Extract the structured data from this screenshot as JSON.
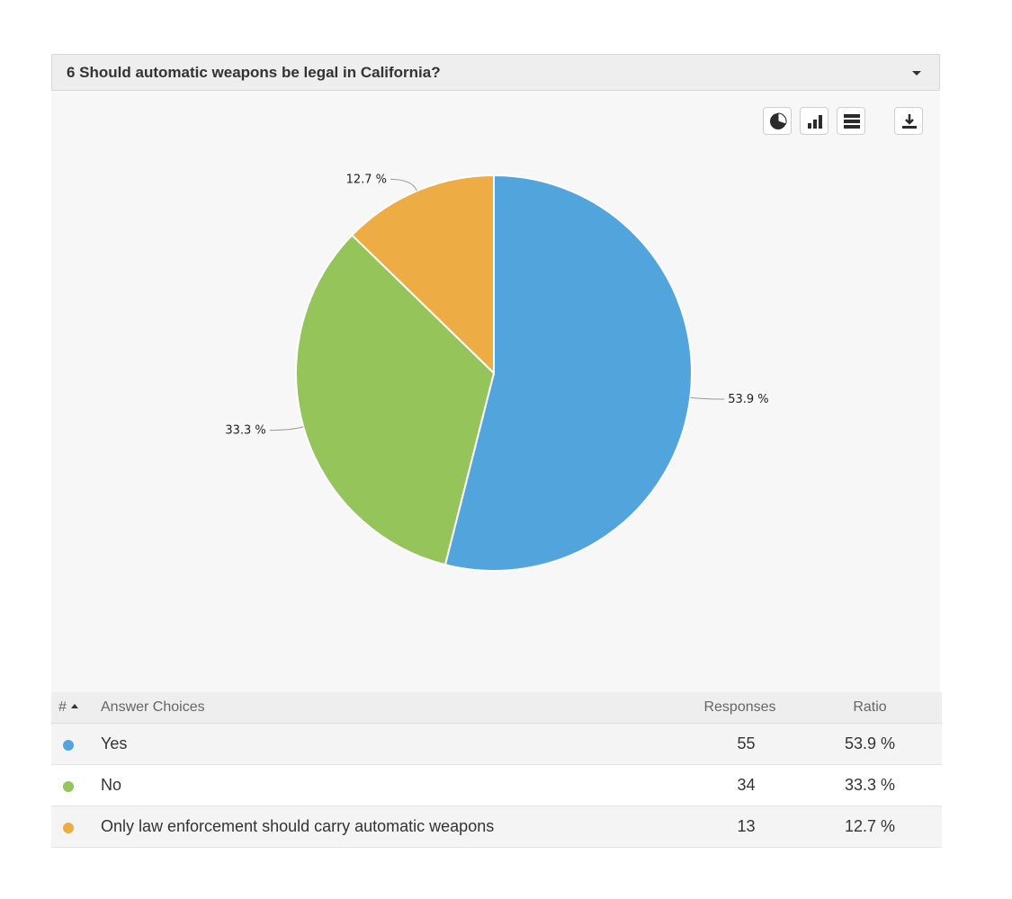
{
  "question": {
    "title": "6 Should automatic weapons be legal in California?"
  },
  "toolbar": {
    "icons": [
      "pie-chart-icon",
      "bar-chart-icon",
      "table-view-icon",
      "download-icon"
    ]
  },
  "chart_data": {
    "type": "pie",
    "title": "",
    "categories": [
      "Yes",
      "No",
      "Only law enforcement should carry automatic weapons"
    ],
    "values": [
      53.9,
      33.3,
      12.7
    ],
    "labels": [
      "53.9 %",
      "33.3 %",
      "12.7 %"
    ],
    "colors": [
      "#52a5dc",
      "#95c45a",
      "#eeac45"
    ],
    "legend": "none"
  },
  "table": {
    "headers": {
      "number": "#",
      "choice": "Answer Choices",
      "responses": "Responses",
      "ratio": "Ratio"
    },
    "rows": [
      {
        "choice": "Yes",
        "responses": "55",
        "ratio": "53.9 %",
        "color": "#52a5dc"
      },
      {
        "choice": "No",
        "responses": "34",
        "ratio": "33.3 %",
        "color": "#95c45a"
      },
      {
        "choice": "Only law enforcement should carry automatic weapons",
        "responses": "13",
        "ratio": "12.7 %",
        "color": "#eeac45"
      }
    ]
  }
}
